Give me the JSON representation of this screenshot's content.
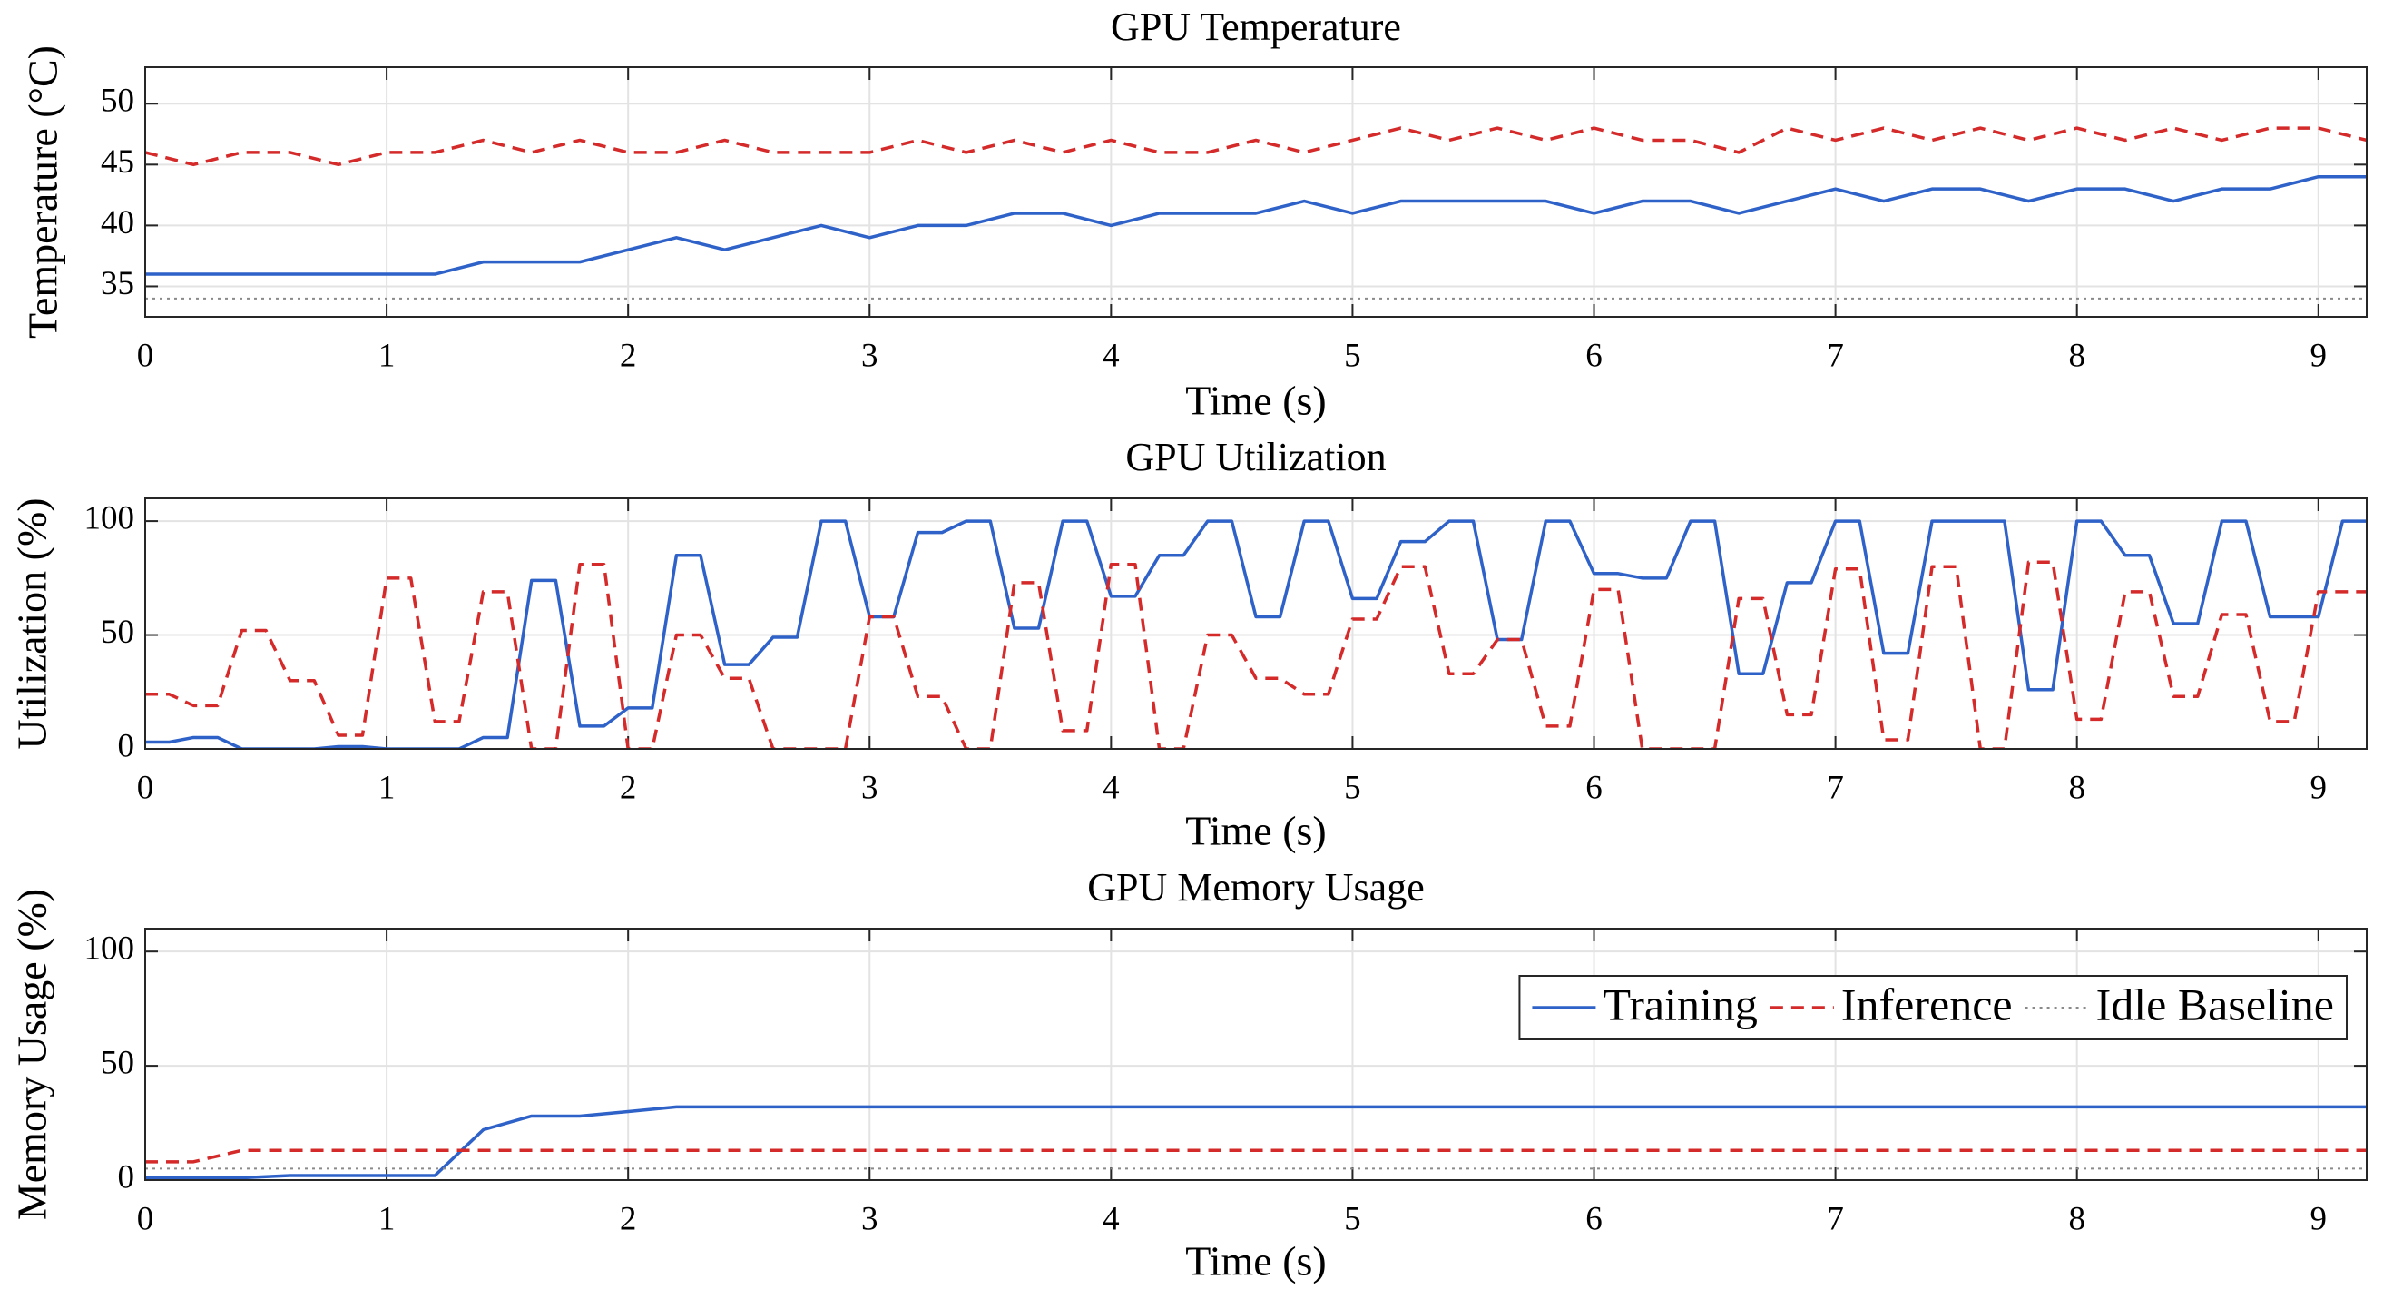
{
  "chart_data": [
    {
      "type": "line",
      "title": "GPU Temperature",
      "xlabel": "Time (s)",
      "ylabel": "Temperature (°C)",
      "x": [
        0,
        0.2,
        0.4,
        0.6,
        0.8,
        1,
        1.2,
        1.4,
        1.6,
        1.8,
        2,
        2.2,
        2.4,
        2.6,
        2.8,
        3,
        3.2,
        3.4,
        3.6,
        3.8,
        4,
        4.2,
        4.4,
        4.6,
        4.8,
        5,
        5.2,
        5.4,
        5.6,
        5.8,
        6,
        6.2,
        6.4,
        6.6,
        6.8,
        7,
        7.2,
        7.4,
        7.6,
        7.8,
        8,
        8.2,
        8.4,
        8.6,
        8.8,
        9,
        9.2
      ],
      "xlim": [
        0,
        9.2
      ],
      "xticks": [
        0,
        1,
        2,
        3,
        4,
        5,
        6,
        7,
        8,
        9
      ],
      "ylim": [
        32.5,
        53
      ],
      "yticks": [
        35,
        40,
        45,
        50
      ],
      "grid": true,
      "series": [
        {
          "color": "#2f62c8",
          "style": "solid",
          "values": [
            36,
            36,
            36,
            36,
            36,
            36,
            36,
            37,
            37,
            37,
            38,
            39,
            38,
            39,
            40,
            39,
            40,
            40,
            41,
            41,
            40,
            41,
            41,
            41,
            42,
            41,
            42,
            42,
            42,
            42,
            41,
            42,
            42,
            41,
            42,
            43,
            42,
            43,
            43,
            42,
            43,
            43,
            42,
            43,
            43,
            44,
            44
          ]
        },
        {
          "color": "#d42a2a",
          "style": "dashed",
          "values": [
            46,
            45,
            46,
            46,
            45,
            46,
            46,
            47,
            46,
            47,
            46,
            46,
            47,
            46,
            46,
            46,
            47,
            46,
            47,
            46,
            47,
            46,
            46,
            47,
            46,
            47,
            48,
            47,
            48,
            47,
            48,
            47,
            47,
            46,
            48,
            47,
            48,
            47,
            48,
            47,
            48,
            47,
            48,
            47,
            48,
            48,
            47
          ]
        },
        {
          "color": "#8a8a8a",
          "style": "dotted",
          "values": [
            34,
            34,
            34,
            34,
            34,
            34,
            34,
            34,
            34,
            34,
            34,
            34,
            34,
            34,
            34,
            34,
            34,
            34,
            34,
            34,
            34,
            34,
            34,
            34,
            34,
            34,
            34,
            34,
            34,
            34,
            34,
            34,
            34,
            34,
            34,
            34,
            34,
            34,
            34,
            34,
            34,
            34,
            34,
            34,
            34,
            34,
            34
          ]
        }
      ]
    },
    {
      "type": "line",
      "title": "GPU Utilization",
      "xlabel": "Time (s)",
      "ylabel": "Utilization (%)",
      "x": [
        0,
        0.1,
        0.2,
        0.3,
        0.4,
        0.5,
        0.6,
        0.7,
        0.8,
        0.9,
        1,
        1.1,
        1.2,
        1.3,
        1.4,
        1.5,
        1.6,
        1.7,
        1.8,
        1.9,
        2,
        2.1,
        2.2,
        2.3,
        2.4,
        2.5,
        2.6,
        2.7,
        2.8,
        2.9,
        3,
        3.1,
        3.2,
        3.3,
        3.4,
        3.5,
        3.6,
        3.7,
        3.8,
        3.9,
        4,
        4.1,
        4.2,
        4.3,
        4.4,
        4.5,
        4.6,
        4.7,
        4.8,
        4.9,
        5,
        5.1,
        5.2,
        5.3,
        5.4,
        5.5,
        5.6,
        5.7,
        5.8,
        5.9,
        6,
        6.1,
        6.2,
        6.3,
        6.4,
        6.5,
        6.6,
        6.7,
        6.8,
        6.9,
        7,
        7.1,
        7.2,
        7.3,
        7.4,
        7.5,
        7.6,
        7.7,
        7.8,
        7.9,
        8,
        8.1,
        8.2,
        8.3,
        8.4,
        8.5,
        8.6,
        8.7,
        8.8,
        8.9,
        9,
        9.1,
        9.2
      ],
      "xlim": [
        0,
        9.2
      ],
      "xticks": [
        0,
        1,
        2,
        3,
        4,
        5,
        6,
        7,
        8,
        9
      ],
      "ylim": [
        0,
        110
      ],
      "yticks": [
        0,
        50,
        100
      ],
      "grid": true,
      "series": [
        {
          "color": "#2f62c8",
          "style": "solid",
          "values": [
            3,
            3,
            5,
            5,
            0,
            0,
            0,
            0,
            1,
            1,
            0,
            0,
            0,
            0,
            5,
            5,
            74,
            74,
            10,
            10,
            18,
            18,
            85,
            85,
            37,
            37,
            49,
            49,
            100,
            100,
            58,
            58,
            95,
            95,
            100,
            100,
            53,
            53,
            100,
            100,
            67,
            67,
            85,
            85,
            100,
            100,
            58,
            58,
            100,
            100,
            66,
            66,
            91,
            91,
            100,
            100,
            48,
            48,
            100,
            100,
            77,
            77,
            75,
            75,
            100,
            100,
            33,
            33,
            73,
            73,
            100,
            100,
            42,
            42,
            100,
            100,
            100,
            100,
            26,
            26,
            100,
            100,
            85,
            85,
            55,
            55,
            100,
            100,
            58,
            58,
            58,
            100,
            100
          ]
        },
        {
          "color": "#d42a2a",
          "style": "dashed",
          "values": [
            24,
            24,
            19,
            19,
            52,
            52,
            30,
            30,
            6,
            6,
            75,
            75,
            12,
            12,
            69,
            69,
            0,
            0,
            81,
            81,
            0,
            0,
            50,
            50,
            31,
            31,
            0,
            0,
            0,
            0,
            58,
            58,
            23,
            23,
            0,
            0,
            73,
            73,
            8,
            8,
            81,
            81,
            0,
            0,
            50,
            50,
            31,
            31,
            24,
            24,
            57,
            57,
            80,
            80,
            33,
            33,
            48,
            48,
            10,
            10,
            70,
            70,
            0,
            0,
            0,
            0,
            66,
            66,
            15,
            15,
            79,
            79,
            4,
            4,
            80,
            80,
            0,
            0,
            82,
            82,
            13,
            13,
            69,
            69,
            23,
            23,
            59,
            59,
            12,
            12,
            69,
            69,
            69
          ]
        },
        {
          "color": "#333333",
          "style": "dotted",
          "values": [
            0,
            0,
            0,
            0,
            0,
            0,
            0,
            0,
            0,
            0,
            0,
            0,
            0,
            0,
            0,
            0,
            0,
            0,
            0,
            0,
            0,
            0,
            0,
            0,
            0,
            0,
            0,
            0,
            0,
            0,
            0,
            0,
            0,
            0,
            0,
            0,
            0,
            0,
            0,
            0,
            0,
            0,
            0,
            0,
            0,
            0,
            0,
            0,
            0,
            0,
            0,
            0,
            0,
            0,
            0,
            0,
            0,
            0,
            0,
            0,
            0,
            0,
            0,
            0,
            0,
            0,
            0,
            0,
            0,
            0,
            0,
            0,
            0,
            0,
            0,
            0,
            0,
            0,
            0,
            0,
            0,
            0,
            0,
            0,
            0,
            0,
            0,
            0,
            0,
            0,
            0,
            0,
            0
          ]
        }
      ]
    },
    {
      "type": "line",
      "title": "GPU Memory Usage",
      "xlabel": "Time (s)",
      "ylabel": "Memory Usage (%)",
      "x": [
        0,
        0.2,
        0.4,
        0.6,
        0.8,
        1,
        1.2,
        1.4,
        1.6,
        1.8,
        2,
        2.2,
        2.4,
        2.6,
        2.8,
        3,
        3.2,
        3.4,
        3.6,
        3.8,
        4,
        4.2,
        4.4,
        4.6,
        4.8,
        5,
        5.2,
        5.4,
        5.6,
        5.8,
        6,
        6.2,
        6.4,
        6.6,
        6.8,
        7,
        7.2,
        7.4,
        7.6,
        7.8,
        8,
        8.2,
        8.4,
        8.6,
        8.8,
        9,
        9.2
      ],
      "xlim": [
        0,
        9.2
      ],
      "xticks": [
        0,
        1,
        2,
        3,
        4,
        5,
        6,
        7,
        8,
        9
      ],
      "ylim": [
        0,
        110
      ],
      "yticks": [
        0,
        50,
        100
      ],
      "grid": true,
      "legend": "northeast",
      "series": [
        {
          "name": "Training",
          "color": "#2f62c8",
          "style": "solid",
          "values": [
            1,
            1,
            1,
            2,
            2,
            2,
            2,
            22,
            28,
            28,
            30,
            32,
            32,
            32,
            32,
            32,
            32,
            32,
            32,
            32,
            32,
            32,
            32,
            32,
            32,
            32,
            32,
            32,
            32,
            32,
            32,
            32,
            32,
            32,
            32,
            32,
            32,
            32,
            32,
            32,
            32,
            32,
            32,
            32,
            32,
            32,
            32
          ]
        },
        {
          "name": "Inference",
          "color": "#d42a2a",
          "style": "dashed",
          "values": [
            8,
            8,
            13,
            13,
            13,
            13,
            13,
            13,
            13,
            13,
            13,
            13,
            13,
            13,
            13,
            13,
            13,
            13,
            13,
            13,
            13,
            13,
            13,
            13,
            13,
            13,
            13,
            13,
            13,
            13,
            13,
            13,
            13,
            13,
            13,
            13,
            13,
            13,
            13,
            13,
            13,
            13,
            13,
            13,
            13,
            13,
            13
          ]
        },
        {
          "name": "Idle Baseline",
          "color": "#8a8a8a",
          "style": "dotted",
          "values": [
            5,
            5,
            5,
            5,
            5,
            5,
            5,
            5,
            5,
            5,
            5,
            5,
            5,
            5,
            5,
            5,
            5,
            5,
            5,
            5,
            5,
            5,
            5,
            5,
            5,
            5,
            5,
            5,
            5,
            5,
            5,
            5,
            5,
            5,
            5,
            5,
            5,
            5,
            5,
            5,
            5,
            5,
            5,
            5,
            5,
            5,
            5
          ]
        }
      ]
    }
  ]
}
